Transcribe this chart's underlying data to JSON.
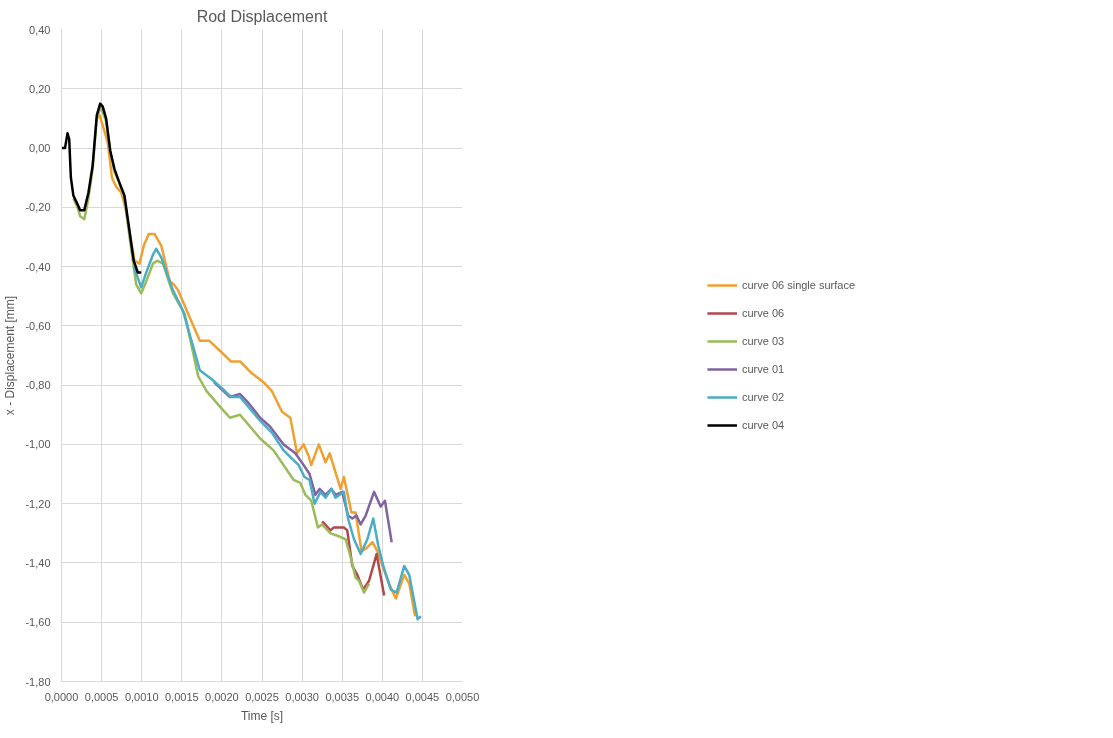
{
  "chart_data": {
    "type": "line",
    "title": "Rod Displacement",
    "xlabel": "Time [s]",
    "ylabel": "x - Displacement [mm]",
    "xlim": [
      0,
      0.005
    ],
    "ylim": [
      -1.8,
      0.4
    ],
    "xticks": [
      {
        "value": 0,
        "label": "0,0000"
      },
      {
        "value": 0.0005,
        "label": "0,0005"
      },
      {
        "value": 0.001,
        "label": "0,0010"
      },
      {
        "value": 0.0015,
        "label": "0,0015"
      },
      {
        "value": 0.002,
        "label": "0,0020"
      },
      {
        "value": 0.0025,
        "label": "0,0025"
      },
      {
        "value": 0.003,
        "label": "0,0030"
      },
      {
        "value": 0.0035,
        "label": "0,0035"
      },
      {
        "value": 0.004,
        "label": "0,0040"
      },
      {
        "value": 0.0045,
        "label": "0,0045"
      },
      {
        "value": 0.005,
        "label": "0,0050"
      }
    ],
    "yticks": [
      {
        "value": -1.8,
        "label": "-1,80"
      },
      {
        "value": -1.6,
        "label": "-1,60"
      },
      {
        "value": -1.4,
        "label": "-1,40"
      },
      {
        "value": -1.2,
        "label": "-1,20"
      },
      {
        "value": -1.0,
        "label": "-1,00"
      },
      {
        "value": -0.8,
        "label": "-0,80"
      },
      {
        "value": -0.6,
        "label": "-0,60"
      },
      {
        "value": -0.4,
        "label": "-0,40"
      },
      {
        "value": -0.2,
        "label": "-0,20"
      },
      {
        "value": 0,
        "label": "0,00"
      },
      {
        "value": 0.2,
        "label": "0,20"
      },
      {
        "value": 0.4,
        "label": "0,40"
      }
    ],
    "grid": true,
    "legend": "right",
    "marker": "none",
    "line_style": "solid",
    "series": [
      {
        "name": "curve 06 single surface",
        "color": "#f0a030",
        "x": [
          0.00044,
          0.000476,
          0.000576,
          0.000629,
          0.00068,
          0.000744,
          0.000796,
          0.000858,
          0.00091,
          0.000973,
          0.001025,
          0.001088,
          0.00116,
          0.001245,
          0.00135,
          0.0014,
          0.001454,
          0.00158,
          0.001725,
          0.00184,
          0.002,
          0.002112,
          0.002226,
          0.002373,
          0.002519,
          0.002623,
          0.002749,
          0.002853,
          0.002937,
          0.00302,
          0.003083,
          0.003114,
          0.003208,
          0.003292,
          0.003344,
          0.00348,
          0.003521,
          0.003615,
          0.003667,
          0.003741,
          0.003803,
          0.003877,
          0.003939,
          0.004002,
          0.004085,
          0.004169,
          0.004273,
          0.004336,
          0.004409
        ],
        "values": [
          0.1,
          0.11,
          0.02,
          -0.1,
          -0.13,
          -0.15,
          -0.2,
          -0.3,
          -0.38,
          -0.39,
          -0.33,
          -0.29,
          -0.29,
          -0.33,
          -0.45,
          -0.46,
          -0.48,
          -0.56,
          -0.65,
          -0.65,
          -0.69,
          -0.72,
          -0.72,
          -0.76,
          -0.79,
          -0.82,
          -0.89,
          -0.91,
          -1.03,
          -1.0,
          -1.04,
          -1.07,
          -1.0,
          -1.06,
          -1.03,
          -1.15,
          -1.11,
          -1.23,
          -1.23,
          -1.36,
          -1.35,
          -1.33,
          -1.36,
          -1.41,
          -1.47,
          -1.52,
          -1.44,
          -1.47,
          -1.58
        ]
      },
      {
        "name": "curve 06",
        "color": "#b2474a",
        "x": [
          0.00325,
          0.003354,
          0.003396,
          0.00348,
          0.003521,
          0.003563,
          0.003626,
          0.003688,
          0.003761,
          0.003835,
          0.003929,
          0.004023
        ],
        "values": [
          -1.26,
          -1.29,
          -1.28,
          -1.28,
          -1.28,
          -1.29,
          -1.41,
          -1.44,
          -1.49,
          -1.46,
          -1.37,
          -1.51
        ]
      },
      {
        "name": "curve 03",
        "color": "#9bbb59",
        "x": [
          0.000148,
          0.0002,
          0.000232,
          0.000284,
          0.000336,
          0.000388,
          0.00044,
          0.00049,
          0.000556,
          0.000608,
          0.00066,
          0.000712,
          0.000785,
          0.000848,
          0.000931,
          0.000994,
          0.001057,
          0.00114,
          0.001193,
          0.001266,
          0.00135,
          0.00139,
          0.001516,
          0.001537,
          0.001704,
          0.001809,
          0.002,
          0.0021,
          0.002226,
          0.002477,
          0.002644,
          0.002895,
          0.002978,
          0.003041,
          0.003114,
          0.003197,
          0.00325,
          0.003354,
          0.003459,
          0.003542,
          0.003605,
          0.003667,
          0.003709,
          0.003772,
          0.003835
        ],
        "values": [
          -0.17,
          -0.2,
          -0.23,
          -0.24,
          -0.17,
          -0.07,
          0.1,
          0.14,
          0.09,
          -0.01,
          -0.08,
          -0.11,
          -0.17,
          -0.3,
          -0.46,
          -0.49,
          -0.45,
          -0.39,
          -0.38,
          -0.39,
          -0.46,
          -0.49,
          -0.55,
          -0.56,
          -0.77,
          -0.82,
          -0.88,
          -0.91,
          -0.9,
          -0.98,
          -1.02,
          -1.12,
          -1.13,
          -1.17,
          -1.19,
          -1.28,
          -1.27,
          -1.3,
          -1.31,
          -1.32,
          -1.38,
          -1.45,
          -1.46,
          -1.5,
          -1.47
        ]
      },
      {
        "name": "curve 01",
        "color": "#8064a2",
        "x": [
          0.0019,
          0.0021,
          0.002226,
          0.002331,
          0.002477,
          0.002602,
          0.002769,
          0.002916,
          0.00302,
          0.003093,
          0.003166,
          0.003218,
          0.003292,
          0.003365,
          0.003417,
          0.0035,
          0.003573,
          0.003626,
          0.003678,
          0.00373,
          0.003793,
          0.003897,
          0.003981,
          0.004033,
          0.004117
        ],
        "values": [
          -0.79,
          -0.84,
          -0.83,
          -0.86,
          -0.91,
          -0.94,
          -1.0,
          -1.03,
          -1.07,
          -1.1,
          -1.17,
          -1.15,
          -1.17,
          -1.15,
          -1.17,
          -1.16,
          -1.24,
          -1.25,
          -1.24,
          -1.27,
          -1.24,
          -1.16,
          -1.21,
          -1.19,
          -1.33
        ]
      },
      {
        "name": "curve 02",
        "color": "#4bacc6",
        "x": [
          0.0009,
          0.000994,
          0.001057,
          0.00114,
          0.001182,
          0.001245,
          0.00135,
          0.00139,
          0.001516,
          0.001725,
          0.001872,
          0.002,
          0.002112,
          0.002226,
          0.002477,
          0.002623,
          0.002769,
          0.002957,
          0.00303,
          0.003093,
          0.003156,
          0.003229,
          0.003292,
          0.003365,
          0.003417,
          0.003521,
          0.003573,
          0.003647,
          0.00373,
          0.003814,
          0.003887,
          0.003949,
          0.004012,
          0.004106,
          0.004179,
          0.004273,
          0.004336,
          0.00444,
          0.004482
        ],
        "values": [
          -0.4,
          -0.47,
          -0.42,
          -0.36,
          -0.34,
          -0.37,
          -0.45,
          -0.48,
          -0.55,
          -0.75,
          -0.78,
          -0.81,
          -0.84,
          -0.84,
          -0.92,
          -0.96,
          -1.02,
          -1.07,
          -1.11,
          -1.12,
          -1.2,
          -1.16,
          -1.18,
          -1.15,
          -1.18,
          -1.16,
          -1.25,
          -1.32,
          -1.37,
          -1.32,
          -1.25,
          -1.34,
          -1.41,
          -1.49,
          -1.5,
          -1.41,
          -1.44,
          -1.59,
          -1.58
        ]
      },
      {
        "name": "curve 04",
        "color": "#000000",
        "x": [
          0,
          4.4e-05,
          7.5e-05,
          9.6e-05,
          0.000117,
          0.000148,
          0.0002,
          0.000232,
          0.000284,
          0.000336,
          0.000388,
          0.00044,
          0.000482,
          0.000514,
          0.000556,
          0.000608,
          0.00066,
          0.000712,
          0.000785,
          0.000848,
          0.0009,
          0.000952,
          0.000994
        ],
        "values": [
          0,
          0,
          0.05,
          0.03,
          -0.1,
          -0.16,
          -0.19,
          -0.21,
          -0.21,
          -0.15,
          -0.06,
          0.11,
          0.15,
          0.14,
          0.1,
          -0.01,
          -0.07,
          -0.11,
          -0.16,
          -0.28,
          -0.38,
          -0.42,
          -0.42
        ]
      }
    ]
  }
}
